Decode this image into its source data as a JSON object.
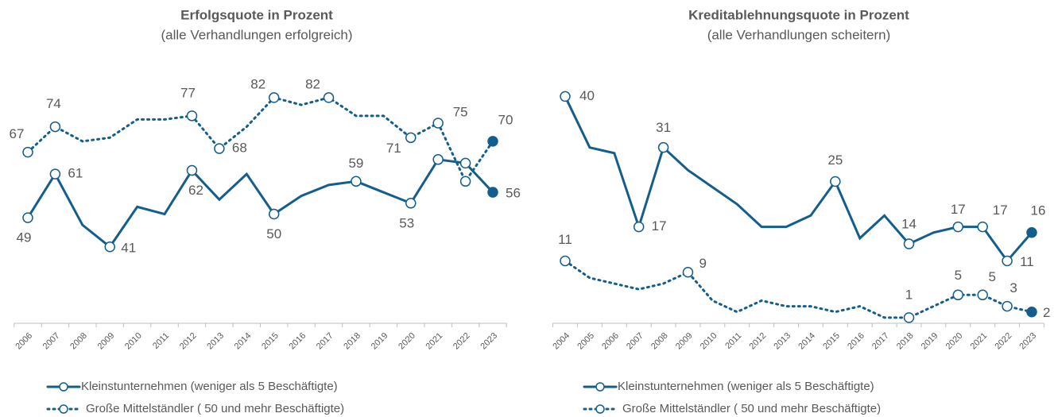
{
  "chart_data": [
    {
      "type": "line",
      "title": "Erfolgsquote in Prozent",
      "subtitle": "(alle Verhandlungen erfolgreich)",
      "categories": [
        "2006",
        "2007",
        "2008",
        "2009",
        "2010",
        "2011",
        "2012",
        "2013",
        "2014",
        "2015",
        "2016",
        "2017",
        "2018",
        "2019",
        "2020",
        "2021",
        "2022",
        "2023"
      ],
      "series": [
        {
          "name": "Kleinstunternehmen (weniger als 5 Beschäftigte)",
          "color": "#135e8c",
          "dash": "solid",
          "values": [
            49,
            61,
            47,
            41,
            52,
            50,
            62,
            54,
            61,
            50,
            55,
            58,
            59,
            56,
            53,
            65,
            64,
            56
          ]
        },
        {
          "name": "Große Mittelständler ( 50 und mehr Beschäftigte)",
          "color": "#135e8c",
          "dash": "dotted",
          "values": [
            67,
            74,
            70,
            71,
            76,
            76,
            77,
            68,
            74,
            82,
            80,
            82,
            77,
            77,
            71,
            75,
            59,
            70
          ]
        }
      ],
      "ylim": [
        20,
        87
      ]
    },
    {
      "type": "line",
      "title": "Kreditablehnungsquote in Prozent",
      "subtitle": "(alle Verhandlungen scheitern)",
      "categories": [
        "2004",
        "2005",
        "2006",
        "2007",
        "2008",
        "2009",
        "2010",
        "2011",
        "2012",
        "2013",
        "2014",
        "2015",
        "2016",
        "2017",
        "2018",
        "2019",
        "2020",
        "2021",
        "2022",
        "2023"
      ],
      "series": [
        {
          "name": "Kleinstunternehmen (weniger als 5 Beschäftigte)",
          "color": "#135e8c",
          "dash": "solid",
          "values": [
            40,
            31,
            30,
            17,
            31,
            27,
            24,
            21,
            17,
            17,
            19,
            25,
            15,
            19,
            14,
            16,
            17,
            17,
            11,
            16
          ]
        },
        {
          "name": "Große Mittelständler ( 50 und mehr Beschäftigte)",
          "color": "#135e8c",
          "dash": "dotted",
          "values": [
            11,
            8,
            7,
            6,
            7,
            9,
            4,
            2,
            4,
            3,
            3,
            2,
            3,
            1,
            1,
            3,
            5,
            5,
            3,
            2
          ]
        }
      ],
      "ylim": [
        0,
        43
      ]
    }
  ]
}
